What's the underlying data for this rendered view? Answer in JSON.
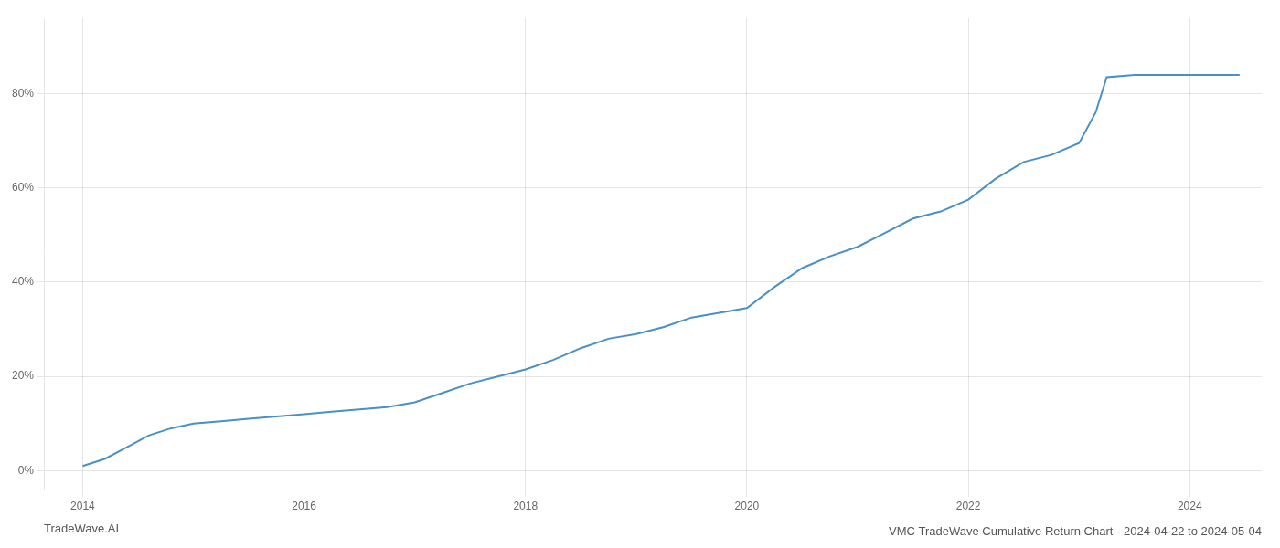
{
  "chart_data": {
    "type": "line",
    "title": "VMC TradeWave Cumulative Return Chart - 2024-04-22 to 2024-05-04",
    "annotations": [
      "TradeWave.AI"
    ],
    "x": [
      2014.0,
      2014.2,
      2014.4,
      2014.6,
      2014.8,
      2015.0,
      2015.25,
      2015.5,
      2015.75,
      2016.0,
      2016.25,
      2016.5,
      2016.75,
      2017.0,
      2017.25,
      2017.5,
      2017.75,
      2018.0,
      2018.25,
      2018.5,
      2018.75,
      2019.0,
      2019.25,
      2019.5,
      2019.75,
      2020.0,
      2020.25,
      2020.5,
      2020.75,
      2021.0,
      2021.25,
      2021.5,
      2021.75,
      2022.0,
      2022.25,
      2022.5,
      2022.75,
      2023.0,
      2023.15,
      2023.25,
      2023.5,
      2023.75,
      2024.0,
      2024.25,
      2024.45
    ],
    "values": [
      1.0,
      2.5,
      5.0,
      7.5,
      9.0,
      10.0,
      10.5,
      11.0,
      11.5,
      12.0,
      12.5,
      13.0,
      13.5,
      14.5,
      16.5,
      18.5,
      20.0,
      21.5,
      23.5,
      26.0,
      28.0,
      29.0,
      30.5,
      32.5,
      33.5,
      34.5,
      39.0,
      43.0,
      45.5,
      47.5,
      50.5,
      53.5,
      55.0,
      57.5,
      62.0,
      65.5,
      67.0,
      69.5,
      76.0,
      83.5,
      84.0,
      84.0,
      84.0,
      84.0,
      84.0
    ],
    "color": "#4a90c4",
    "xlim": [
      2013.65,
      2024.65
    ],
    "xticks": [
      2014,
      2016,
      2018,
      2020,
      2022,
      2024
    ],
    "ylim": [
      -4,
      96
    ],
    "yticks": [
      {
        "value": 0,
        "label": "0%"
      },
      {
        "value": 20,
        "label": "20%"
      },
      {
        "value": 40,
        "label": "40%"
      },
      {
        "value": 60,
        "label": "60%"
      },
      {
        "value": 80,
        "label": "80%"
      }
    ],
    "grid": true
  }
}
